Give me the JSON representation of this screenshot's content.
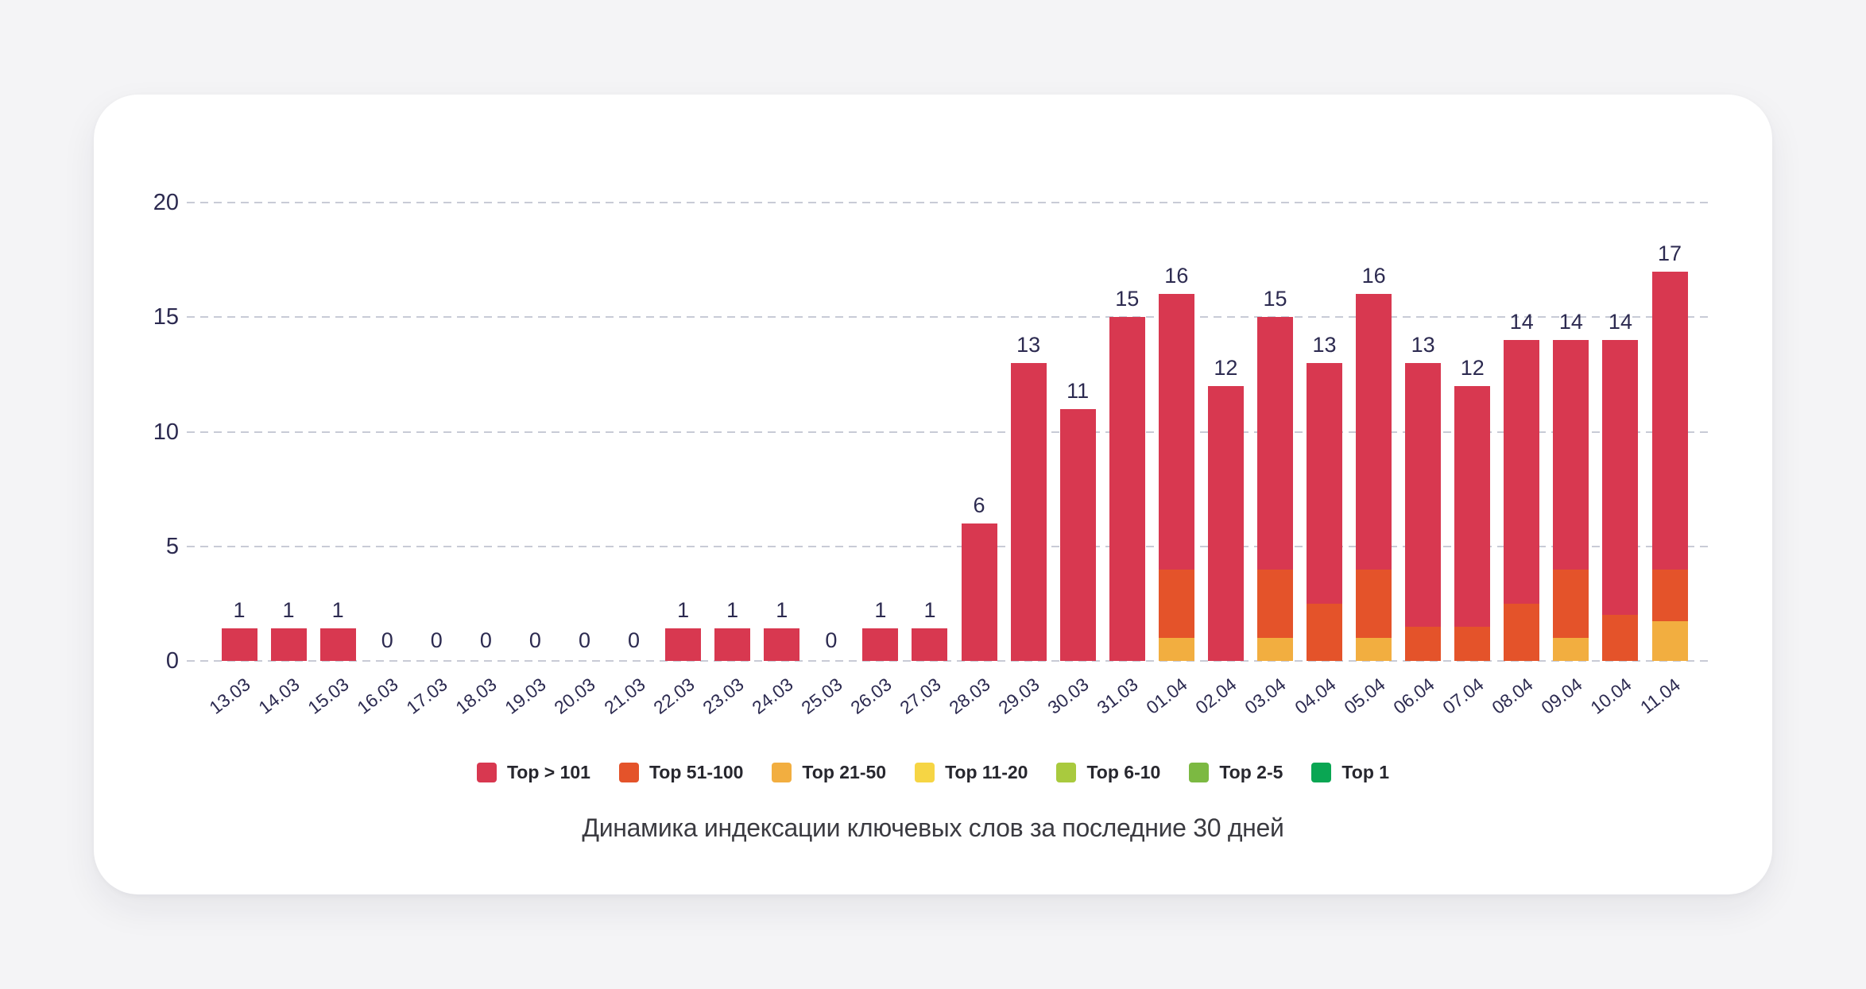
{
  "page": {
    "background": "#f4f4f6",
    "card_background": "#ffffff"
  },
  "colors": {
    "axis_text": "#2c2a50",
    "gridline": "#c8cbd6",
    "title_text": "#3b3b41",
    "legend_text": "#27272e"
  },
  "chart_data": {
    "type": "bar",
    "stacked": true,
    "title": "Динамика индексации ключевых слов за последние 30 дней",
    "xlabel": "",
    "ylabel": "",
    "ylim": [
      0,
      20
    ],
    "yticks": [
      0,
      5,
      10,
      15,
      20
    ],
    "grid": "horizontal dashed",
    "legend_position": "bottom",
    "categories": [
      "13.03",
      "14.03",
      "15.03",
      "16.03",
      "17.03",
      "18.03",
      "19.03",
      "20.03",
      "21.03",
      "22.03",
      "23.03",
      "24.03",
      "25.03",
      "26.03",
      "27.03",
      "28.03",
      "29.03",
      "30.03",
      "31.03",
      "01.04",
      "02.04",
      "03.04",
      "04.04",
      "05.04",
      "06.04",
      "07.04",
      "08.04",
      "09.04",
      "10.04",
      "11.04"
    ],
    "total_labels": [
      "1",
      "1",
      "1",
      "0",
      "0",
      "0",
      "0",
      "0",
      "0",
      "1",
      "1",
      "1",
      "0",
      "1",
      "1",
      "6",
      "13",
      "11",
      "15",
      "16",
      "12",
      "15",
      "13",
      "16",
      "13",
      "12",
      "14",
      "14",
      "14",
      "17"
    ],
    "series": [
      {
        "name": "Top > 101",
        "color": "#d83850",
        "values": [
          1,
          1,
          1,
          0,
          0,
          0,
          0,
          0,
          0,
          1,
          1,
          1,
          0,
          1,
          1,
          6,
          13,
          11,
          15,
          12,
          12,
          11,
          10.5,
          12,
          11.5,
          10.5,
          11.5,
          10,
          12,
          13
        ]
      },
      {
        "name": "Top 51-100",
        "color": "#e4532a",
        "values": [
          0,
          0,
          0,
          0,
          0,
          0,
          0,
          0,
          0,
          0,
          0,
          0,
          0,
          0,
          0,
          0,
          0,
          0,
          0,
          3,
          0,
          3,
          2.5,
          3,
          1.5,
          1.5,
          2.5,
          3,
          2,
          2.25
        ]
      },
      {
        "name": "Top 21-50",
        "color": "#f2ae40",
        "values": [
          0,
          0,
          0,
          0,
          0,
          0,
          0,
          0,
          0,
          0,
          0,
          0,
          0,
          0,
          0,
          0,
          0,
          0,
          0,
          1,
          0,
          1,
          0,
          1,
          0,
          0,
          0,
          1,
          0,
          1.75
        ]
      },
      {
        "name": "Top 11-20",
        "color": "#f6d544",
        "values": [
          0,
          0,
          0,
          0,
          0,
          0,
          0,
          0,
          0,
          0,
          0,
          0,
          0,
          0,
          0,
          0,
          0,
          0,
          0,
          0,
          0,
          0,
          0,
          0,
          0,
          0,
          0,
          0,
          0,
          0
        ]
      },
      {
        "name": "Top 6-10",
        "color": "#a9ca3e",
        "values": [
          0,
          0,
          0,
          0,
          0,
          0,
          0,
          0,
          0,
          0,
          0,
          0,
          0,
          0,
          0,
          0,
          0,
          0,
          0,
          0,
          0,
          0,
          0,
          0,
          0,
          0,
          0,
          0,
          0,
          0
        ]
      },
      {
        "name": "Top 2-5",
        "color": "#7cb942",
        "values": [
          0,
          0,
          0,
          0,
          0,
          0,
          0,
          0,
          0,
          0,
          0,
          0,
          0,
          0,
          0,
          0,
          0,
          0,
          0,
          0,
          0,
          0,
          0,
          0,
          0,
          0,
          0,
          0,
          0,
          0
        ]
      },
      {
        "name": "Top 1",
        "color": "#0aa653",
        "values": [
          0,
          0,
          0,
          0,
          0,
          0,
          0,
          0,
          0,
          0,
          0,
          0,
          0,
          0,
          0,
          0,
          0,
          0,
          0,
          0,
          0,
          0,
          0,
          0,
          0,
          0,
          0,
          0,
          0,
          0
        ]
      }
    ]
  }
}
